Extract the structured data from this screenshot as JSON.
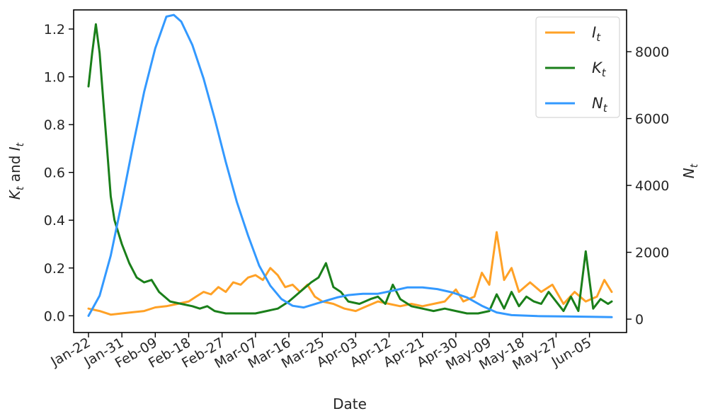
{
  "chart_data": {
    "type": "line",
    "xlabel": "Date",
    "ylabel_left": "K_t and I_t",
    "ylabel_left_parts": {
      "k": "K",
      "k_sub": "t",
      "mid": " and ",
      "i": "I",
      "i_sub": "t"
    },
    "ylabel_right": "N_t",
    "ylabel_right_parts": {
      "n": "N",
      "n_sub": "t"
    },
    "x_ticks": [
      "Jan-22",
      "Jan-31",
      "Feb-09",
      "Feb-18",
      "Feb-27",
      "Mar-07",
      "Mar-16",
      "Mar-25",
      "Apr-03",
      "Apr-12",
      "Apr-21",
      "Apr-30",
      "May-09",
      "May-18",
      "May-27",
      "Jun-05"
    ],
    "x_start": "2020-01-22",
    "x_end": "2020-06-11",
    "xlim": [
      "2020-01-18",
      "2020-06-15"
    ],
    "ylim_left": [
      -0.07,
      1.28
    ],
    "yticks_left": [
      "0.0",
      "0.2",
      "0.4",
      "0.6",
      "0.8",
      "1.0",
      "1.2"
    ],
    "ylim_right": [
      -400,
      9250
    ],
    "yticks_right": [
      "0",
      "2000",
      "4000",
      "6000",
      "8000"
    ],
    "legend_position": "top-right",
    "grid": false,
    "series": [
      {
        "name": "I_t",
        "label_main": "I",
        "label_sub": "t",
        "color": "#ffa126",
        "axis": "left",
        "points": [
          [
            "2020-01-22",
            0.03
          ],
          [
            "2020-01-25",
            0.02
          ],
          [
            "2020-01-28",
            0.005
          ],
          [
            "2020-01-31",
            0.01
          ],
          [
            "2020-02-03",
            0.015
          ],
          [
            "2020-02-06",
            0.02
          ],
          [
            "2020-02-09",
            0.035
          ],
          [
            "2020-02-12",
            0.04
          ],
          [
            "2020-02-15",
            0.05
          ],
          [
            "2020-02-18",
            0.06
          ],
          [
            "2020-02-20",
            0.08
          ],
          [
            "2020-02-22",
            0.1
          ],
          [
            "2020-02-24",
            0.09
          ],
          [
            "2020-02-26",
            0.12
          ],
          [
            "2020-02-28",
            0.1
          ],
          [
            "2020-03-01",
            0.14
          ],
          [
            "2020-03-03",
            0.13
          ],
          [
            "2020-03-05",
            0.16
          ],
          [
            "2020-03-07",
            0.17
          ],
          [
            "2020-03-09",
            0.15
          ],
          [
            "2020-03-11",
            0.2
          ],
          [
            "2020-03-13",
            0.17
          ],
          [
            "2020-03-15",
            0.12
          ],
          [
            "2020-03-17",
            0.13
          ],
          [
            "2020-03-19",
            0.1
          ],
          [
            "2020-03-21",
            0.13
          ],
          [
            "2020-03-23",
            0.08
          ],
          [
            "2020-03-25",
            0.06
          ],
          [
            "2020-03-28",
            0.05
          ],
          [
            "2020-03-31",
            0.03
          ],
          [
            "2020-04-03",
            0.02
          ],
          [
            "2020-04-06",
            0.04
          ],
          [
            "2020-04-09",
            0.06
          ],
          [
            "2020-04-12",
            0.05
          ],
          [
            "2020-04-15",
            0.04
          ],
          [
            "2020-04-18",
            0.05
          ],
          [
            "2020-04-21",
            0.04
          ],
          [
            "2020-04-24",
            0.05
          ],
          [
            "2020-04-27",
            0.06
          ],
          [
            "2020-04-30",
            0.11
          ],
          [
            "2020-05-02",
            0.06
          ],
          [
            "2020-05-05",
            0.08
          ],
          [
            "2020-05-07",
            0.18
          ],
          [
            "2020-05-09",
            0.13
          ],
          [
            "2020-05-11",
            0.35
          ],
          [
            "2020-05-13",
            0.15
          ],
          [
            "2020-05-15",
            0.2
          ],
          [
            "2020-05-17",
            0.1
          ],
          [
            "2020-05-20",
            0.14
          ],
          [
            "2020-05-23",
            0.1
          ],
          [
            "2020-05-26",
            0.13
          ],
          [
            "2020-05-29",
            0.05
          ],
          [
            "2020-06-01",
            0.1
          ],
          [
            "2020-06-04",
            0.06
          ],
          [
            "2020-06-07",
            0.08
          ],
          [
            "2020-06-09",
            0.15
          ],
          [
            "2020-06-11",
            0.1
          ]
        ]
      },
      {
        "name": "K_t",
        "label_main": "K",
        "label_sub": "t",
        "color": "#1a7f1a",
        "axis": "left",
        "points": [
          [
            "2020-01-22",
            0.96
          ],
          [
            "2020-01-23",
            1.1
          ],
          [
            "2020-01-24",
            1.22
          ],
          [
            "2020-01-25",
            1.1
          ],
          [
            "2020-01-26",
            0.9
          ],
          [
            "2020-01-27",
            0.7
          ],
          [
            "2020-01-28",
            0.5
          ],
          [
            "2020-01-29",
            0.4
          ],
          [
            "2020-01-31",
            0.3
          ],
          [
            "2020-02-02",
            0.22
          ],
          [
            "2020-02-04",
            0.16
          ],
          [
            "2020-02-06",
            0.14
          ],
          [
            "2020-02-08",
            0.15
          ],
          [
            "2020-02-10",
            0.1
          ],
          [
            "2020-02-13",
            0.06
          ],
          [
            "2020-02-16",
            0.05
          ],
          [
            "2020-02-19",
            0.04
          ],
          [
            "2020-02-21",
            0.03
          ],
          [
            "2020-02-23",
            0.04
          ],
          [
            "2020-02-25",
            0.02
          ],
          [
            "2020-02-28",
            0.01
          ],
          [
            "2020-03-03",
            0.01
          ],
          [
            "2020-03-07",
            0.01
          ],
          [
            "2020-03-10",
            0.02
          ],
          [
            "2020-03-13",
            0.03
          ],
          [
            "2020-03-16",
            0.06
          ],
          [
            "2020-03-19",
            0.1
          ],
          [
            "2020-03-22",
            0.14
          ],
          [
            "2020-03-24",
            0.16
          ],
          [
            "2020-03-26",
            0.22
          ],
          [
            "2020-03-28",
            0.12
          ],
          [
            "2020-03-30",
            0.1
          ],
          [
            "2020-04-01",
            0.06
          ],
          [
            "2020-04-04",
            0.05
          ],
          [
            "2020-04-07",
            0.07
          ],
          [
            "2020-04-09",
            0.08
          ],
          [
            "2020-04-11",
            0.05
          ],
          [
            "2020-04-13",
            0.13
          ],
          [
            "2020-04-15",
            0.07
          ],
          [
            "2020-04-18",
            0.04
          ],
          [
            "2020-04-21",
            0.03
          ],
          [
            "2020-04-24",
            0.02
          ],
          [
            "2020-04-27",
            0.03
          ],
          [
            "2020-04-30",
            0.02
          ],
          [
            "2020-05-03",
            0.01
          ],
          [
            "2020-05-06",
            0.01
          ],
          [
            "2020-05-09",
            0.02
          ],
          [
            "2020-05-11",
            0.09
          ],
          [
            "2020-05-13",
            0.03
          ],
          [
            "2020-05-15",
            0.1
          ],
          [
            "2020-05-17",
            0.04
          ],
          [
            "2020-05-19",
            0.08
          ],
          [
            "2020-05-21",
            0.06
          ],
          [
            "2020-05-23",
            0.05
          ],
          [
            "2020-05-25",
            0.1
          ],
          [
            "2020-05-27",
            0.06
          ],
          [
            "2020-05-29",
            0.02
          ],
          [
            "2020-05-31",
            0.08
          ],
          [
            "2020-06-02",
            0.02
          ],
          [
            "2020-06-04",
            0.27
          ],
          [
            "2020-06-06",
            0.03
          ],
          [
            "2020-06-08",
            0.07
          ],
          [
            "2020-06-10",
            0.05
          ],
          [
            "2020-06-11",
            0.06
          ]
        ]
      },
      {
        "name": "N_t",
        "label_main": "N",
        "label_sub": "t",
        "color": "#3399ff",
        "axis": "right",
        "points": [
          [
            "2020-01-22",
            100
          ],
          [
            "2020-01-25",
            700
          ],
          [
            "2020-01-28",
            1900
          ],
          [
            "2020-01-31",
            3500
          ],
          [
            "2020-02-03",
            5200
          ],
          [
            "2020-02-06",
            6800
          ],
          [
            "2020-02-09",
            8100
          ],
          [
            "2020-02-12",
            9050
          ],
          [
            "2020-02-14",
            9100
          ],
          [
            "2020-02-16",
            8900
          ],
          [
            "2020-02-19",
            8200
          ],
          [
            "2020-02-22",
            7200
          ],
          [
            "2020-02-25",
            6000
          ],
          [
            "2020-02-28",
            4700
          ],
          [
            "2020-03-02",
            3500
          ],
          [
            "2020-03-05",
            2500
          ],
          [
            "2020-03-08",
            1600
          ],
          [
            "2020-03-11",
            1000
          ],
          [
            "2020-03-14",
            600
          ],
          [
            "2020-03-17",
            400
          ],
          [
            "2020-03-20",
            350
          ],
          [
            "2020-03-23",
            450
          ],
          [
            "2020-03-26",
            550
          ],
          [
            "2020-03-29",
            650
          ],
          [
            "2020-04-01",
            720
          ],
          [
            "2020-04-05",
            760
          ],
          [
            "2020-04-09",
            760
          ],
          [
            "2020-04-13",
            850
          ],
          [
            "2020-04-17",
            950
          ],
          [
            "2020-04-21",
            950
          ],
          [
            "2020-04-25",
            900
          ],
          [
            "2020-04-29",
            800
          ],
          [
            "2020-05-03",
            650
          ],
          [
            "2020-05-07",
            400
          ],
          [
            "2020-05-11",
            200
          ],
          [
            "2020-05-15",
            120
          ],
          [
            "2020-05-22",
            90
          ],
          [
            "2020-05-29",
            80
          ],
          [
            "2020-06-05",
            70
          ],
          [
            "2020-06-11",
            60
          ]
        ]
      }
    ]
  }
}
